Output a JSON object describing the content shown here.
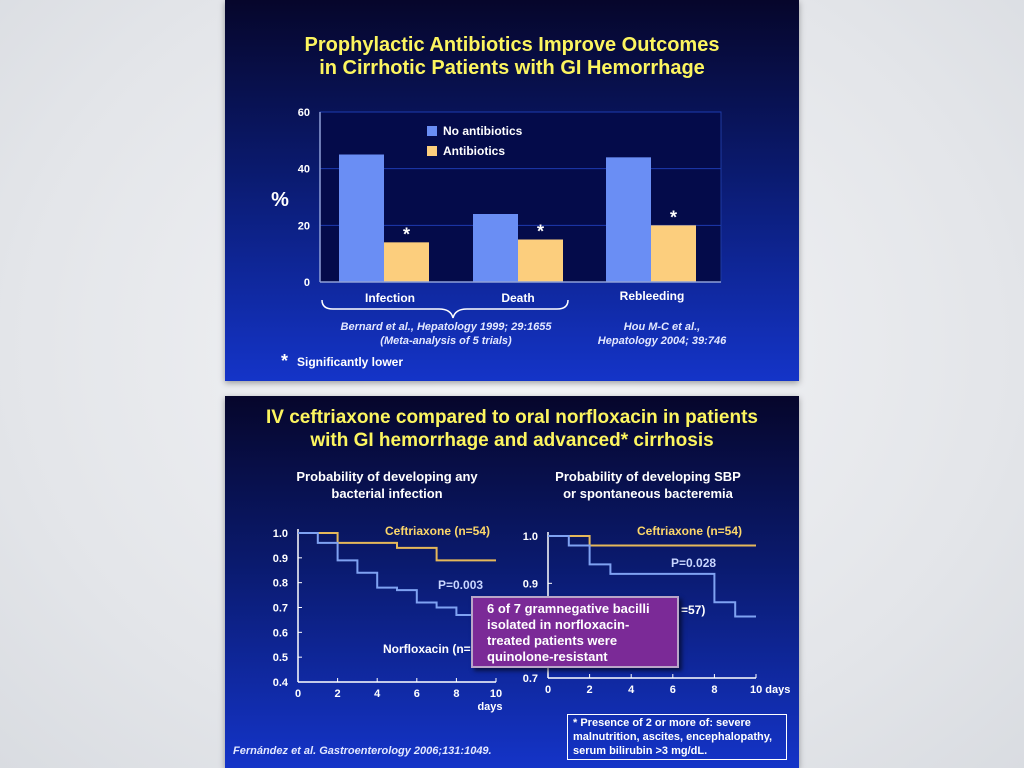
{
  "colors": {
    "title": "#fcf55f",
    "no_antibiotics": "#6a8ef4",
    "antibiotics": "#fcce7d",
    "ceftriaxone_line": "#e5b85a",
    "norfloxacin_line": "#7fa2f2",
    "label_text": "#ffffff",
    "callout_bg": "#7b2a97"
  },
  "slide1": {
    "title_lines": [
      "Prophylactic Antibiotics Improve Outcomes",
      "in Cirrhotic Patients with GI Hemorrhage"
    ],
    "y_axis_label": "%",
    "group_labels": [
      "Infection",
      "Death",
      "Rebleeding"
    ],
    "asterisk": "*",
    "citations": [
      [
        "Bernard et al., Hepatology 1999; 29:1655",
        "(Meta-analysis of 5 trials)"
      ],
      [
        "Hou M-C et al.,",
        "Hepatology 2004; 39:746"
      ]
    ],
    "footnote_symbol": "*",
    "footnote_text": "Significantly lower"
  },
  "slide2": {
    "title_lines": [
      "IV ceftriaxone compared to oral norfloxacin in patients",
      "with GI hemorrhage and advanced* cirrhosis"
    ],
    "left_chart_title": [
      "Probability of developing any",
      "bacterial infection"
    ],
    "right_chart_title": [
      "Probability of developing SBP",
      "or spontaneous bacteremia"
    ],
    "left_annotations": {
      "ceftriaxone": "Ceftriaxone (n=54)",
      "pvalue": "P=0.003",
      "norfloxacin": "Norfloxacin (n="
    },
    "right_annotations": {
      "ceftriaxone": "Ceftriaxone (n=54)",
      "pvalue": "P=0.028",
      "norfloxacin_fragment": "=57)"
    },
    "callout_lines": [
      "6 of 7 gramnegative bacilli",
      "isolated in norfloxacin-",
      "treated patients were",
      "quinolone-resistant"
    ],
    "footnote_lines": [
      "* Presence of 2 or more of: severe",
      "malnutrition, ascites, encephalopathy,",
      "serum bilirubin >3 mg/dL."
    ],
    "citation": "Fernández et al. Gastroenterology 2006;131:1049."
  },
  "chart_data": [
    {
      "type": "bar",
      "title": "Prophylactic Antibiotics Improve Outcomes in Cirrhotic Patients with GI Hemorrhage",
      "ylabel": "%",
      "categories": [
        "Infection",
        "Death",
        "Rebleeding"
      ],
      "ylim": [
        0,
        60
      ],
      "yticks": [
        0,
        20,
        40,
        60
      ],
      "grid": true,
      "legend_position": "top-center",
      "series": [
        {
          "name": "No antibiotics",
          "values": [
            45,
            24,
            44
          ]
        },
        {
          "name": "Antibiotics",
          "values": [
            14,
            15,
            20
          ]
        }
      ]
    },
    {
      "type": "line",
      "title": "Probability of developing any bacterial infection",
      "xlabel": "days",
      "xlim": [
        0,
        10
      ],
      "ylim": [
        0.4,
        1.0
      ],
      "xticks": [
        0,
        2,
        4,
        6,
        8,
        10
      ],
      "yticks": [
        0.4,
        0.5,
        0.6,
        0.7,
        0.8,
        0.9,
        1.0
      ],
      "series": [
        {
          "name": "Ceftriaxone (n=54)",
          "step": true,
          "x": [
            0,
            2,
            5,
            7,
            10
          ],
          "y": [
            1.0,
            0.96,
            0.94,
            0.89,
            0.89
          ]
        },
        {
          "name": "Norfloxacin",
          "step": true,
          "x": [
            0,
            1,
            2,
            3,
            4,
            5,
            6,
            7,
            8,
            9
          ],
          "y": [
            1.0,
            0.96,
            0.89,
            0.84,
            0.78,
            0.77,
            0.72,
            0.7,
            0.67,
            0.67
          ]
        }
      ]
    },
    {
      "type": "line",
      "title": "Probability of developing SBP or spontaneous bacteremia",
      "xlabel": "days",
      "xlim": [
        0,
        10
      ],
      "ylim": [
        0.7,
        1.0
      ],
      "xticks": [
        0,
        2,
        4,
        6,
        8,
        10
      ],
      "yticks": [
        0.7,
        0.8,
        0.9,
        1.0
      ],
      "series": [
        {
          "name": "Ceftriaxone (n=54)",
          "step": true,
          "x": [
            0,
            2,
            10
          ],
          "y": [
            1.0,
            0.98,
            0.98
          ]
        },
        {
          "name": "Norfloxacin",
          "step": true,
          "x": [
            0,
            1,
            2,
            3,
            8,
            9,
            10
          ],
          "y": [
            1.0,
            0.98,
            0.94,
            0.92,
            0.86,
            0.83,
            0.83
          ]
        }
      ]
    }
  ]
}
